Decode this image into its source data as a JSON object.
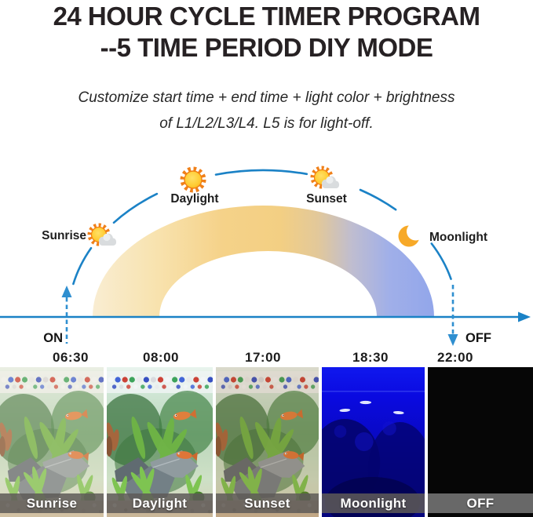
{
  "header": {
    "title_line1": "24 HOUR CYCLE TIMER PROGRAM",
    "title_line2": "--5 TIME PERIOD DIY MODE",
    "subtitle_line1": "Customize start time + end time + light color + brightness",
    "subtitle_line2": "of L1/L2/L3/L4. L5 is for light-off."
  },
  "diagram": {
    "phases": [
      {
        "label": "Sunrise",
        "icon": "sun-cloud-icon"
      },
      {
        "label": "Daylight",
        "icon": "sun-icon"
      },
      {
        "label": "Sunset",
        "icon": "sun-cloud-icon"
      },
      {
        "label": "Moonlight",
        "icon": "moon-icon"
      }
    ],
    "on_label": "ON",
    "off_label": "OFF",
    "times": [
      "06:30",
      "08:00",
      "17:00",
      "18:30",
      "22:00"
    ],
    "colors": {
      "axis_blue": "#1a82c6",
      "dashed_blue": "#2f8fd0",
      "arc_cream": "#f9edd2",
      "arc_gold": "#f5d386",
      "arc_blue": "#93a6ea",
      "sun_orange": "#f08019",
      "sun_yellow": "#ffcc33",
      "moon_orange": "#f7a928"
    }
  },
  "photo_strip": {
    "panels": [
      {
        "label": "Sunrise",
        "scene": "aquarium-warm"
      },
      {
        "label": "Daylight",
        "scene": "aquarium-bright"
      },
      {
        "label": "Sunset",
        "scene": "aquarium-sunset"
      },
      {
        "label": "Moonlight",
        "scene": "aquarium-moonlight"
      },
      {
        "label": "OFF",
        "scene": "light-off"
      }
    ],
    "moonlight_blue": "#0a0ae0",
    "off_black": "#060606"
  }
}
